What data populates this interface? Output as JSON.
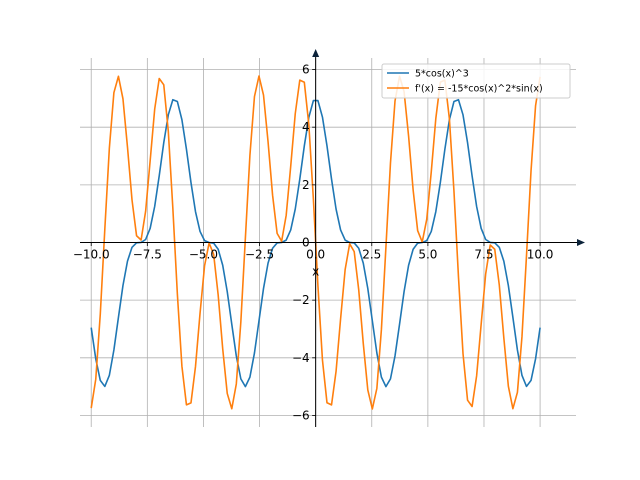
{
  "chart_data": {
    "type": "line",
    "title": "",
    "xlabel": "x",
    "ylabel": "",
    "xlim": [
      -10.5,
      11.6
    ],
    "ylim": [
      -6.4,
      6.4
    ],
    "grid": true,
    "legend_location": "top-right",
    "x_ticks": [
      -10.0,
      -7.5,
      -5.0,
      -2.5,
      0.0,
      2.5,
      5.0,
      7.5,
      10.0
    ],
    "x_tick_labels": [
      "−10.0",
      "−7.5",
      "−5.0",
      "−2.5",
      "0.0",
      "2.5",
      "5.0",
      "7.5",
      "10.0"
    ],
    "y_ticks": [
      -6,
      -4,
      -2,
      0,
      2,
      4,
      6
    ],
    "y_tick_labels": [
      "−6",
      "−4",
      "−2",
      "0",
      "2",
      "4",
      "6"
    ],
    "sampling": {
      "x_start": -10,
      "x_end": 10,
      "num_points": 100
    },
    "series": [
      {
        "name": "5*cos(x)^3",
        "expression": "5*cos(x)^3",
        "color": "#1f77b4"
      },
      {
        "name": "f'(x) = -15*cos(x)^2*sin(x)",
        "expression": "-15*cos(x)^2*sin(x)",
        "color": "#ff7f0e"
      }
    ]
  }
}
